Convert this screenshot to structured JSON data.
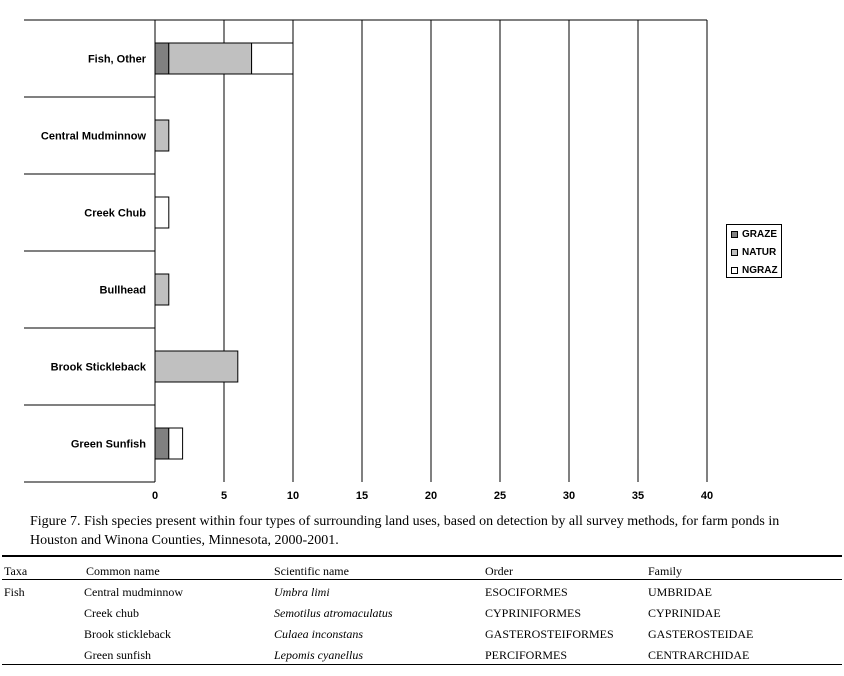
{
  "chart_data": {
    "type": "bar",
    "orientation": "horizontal",
    "stacked": true,
    "categories": [
      "Fish, Other",
      "Central Mudminnow",
      "Creek Chub",
      "Bullhead",
      "Brook Stickleback",
      "Green Sunfish"
    ],
    "series": [
      {
        "name": "GRAZE",
        "color": "#808080",
        "values": [
          1,
          0,
          0,
          0,
          0,
          1
        ]
      },
      {
        "name": "NATUR",
        "color": "#c0c0c0",
        "values": [
          6,
          1,
          0,
          1,
          6,
          0
        ]
      },
      {
        "name": "NGRAZ",
        "color": "#ffffff",
        "values": [
          3,
          0,
          1,
          0,
          0,
          1
        ]
      }
    ],
    "xlim": [
      0,
      40
    ],
    "xticks": [
      "0",
      "5",
      "10",
      "15",
      "20",
      "25",
      "30",
      "35",
      "40"
    ],
    "grid": "vertical",
    "legend": "right"
  },
  "caption": "Figure 7.  Fish species present within four types of surrounding land uses, based on detection by all survey methods, for farm ponds in Houston and Winona Counties, Minnesota, 2000-2001.",
  "table": {
    "headers": {
      "taxa": "Taxa",
      "common": "Common name",
      "scientific": "Scientific name",
      "order": "Order",
      "family": "Family"
    },
    "rows": [
      {
        "taxa": "Fish",
        "common": "Central mudminnow",
        "scientific": "Umbra limi",
        "order": "ESOCIFORMES",
        "family": "UMBRIDAE"
      },
      {
        "taxa": "",
        "common": "Creek chub",
        "scientific": "Semotilus atromaculatus",
        "order": "CYPRINIFORMES",
        "family": "CYPRINIDAE"
      },
      {
        "taxa": "",
        "common": "Brook stickleback",
        "scientific": "Culaea inconstans",
        "order": "GASTEROSTEIFORMES",
        "family": "GASTEROSTEIDAE"
      },
      {
        "taxa": "",
        "common": "Green sunfish",
        "scientific": "Lepomis cyanellus",
        "order": "PERCIFORMES",
        "family": "CENTRARCHIDAE"
      }
    ]
  }
}
